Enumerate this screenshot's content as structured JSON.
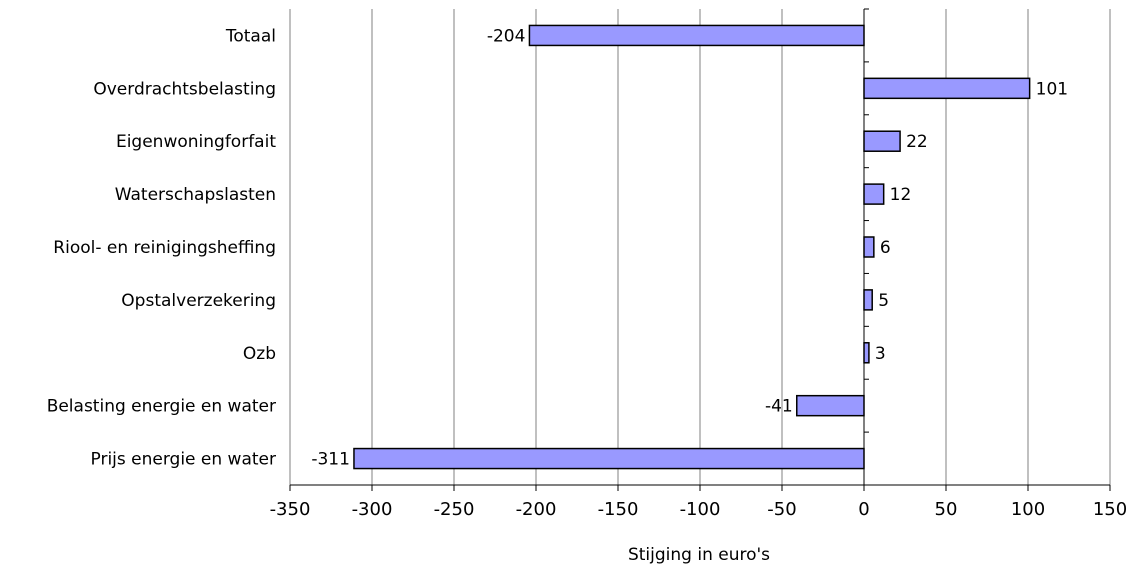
{
  "chart_data": {
    "type": "bar",
    "orientation": "horizontal",
    "categories": [
      "Totaal",
      "Overdrachtsbelasting",
      "Eigenwoningforfait",
      "Waterschapslasten",
      "Riool- en reinigingsheffing",
      "Opstalverzekering",
      "Ozb",
      "Belasting energie en water",
      "Prijs energie en water"
    ],
    "values": [
      -204,
      101,
      22,
      12,
      6,
      5,
      3,
      -41,
      -311
    ],
    "data_labels": [
      "-204",
      "101",
      "22",
      "12",
      "6",
      "5",
      "3",
      "-41",
      "-311"
    ],
    "xlabel": "Stijging in euro's",
    "ylabel": "",
    "xlim": [
      -350,
      150
    ],
    "xticks": [
      -350,
      -300,
      -250,
      -200,
      -150,
      -100,
      -50,
      0,
      50,
      100,
      150
    ],
    "xtick_labels": [
      "-350",
      "-300",
      "-250",
      "-200",
      "-150",
      "-100",
      "-50",
      "0",
      "50",
      "100",
      "150"
    ],
    "grid": "vertical",
    "legend": "none",
    "bar_color": "#9999ff",
    "bar_edge_color": "#000000",
    "grid_color": "#808080"
  }
}
